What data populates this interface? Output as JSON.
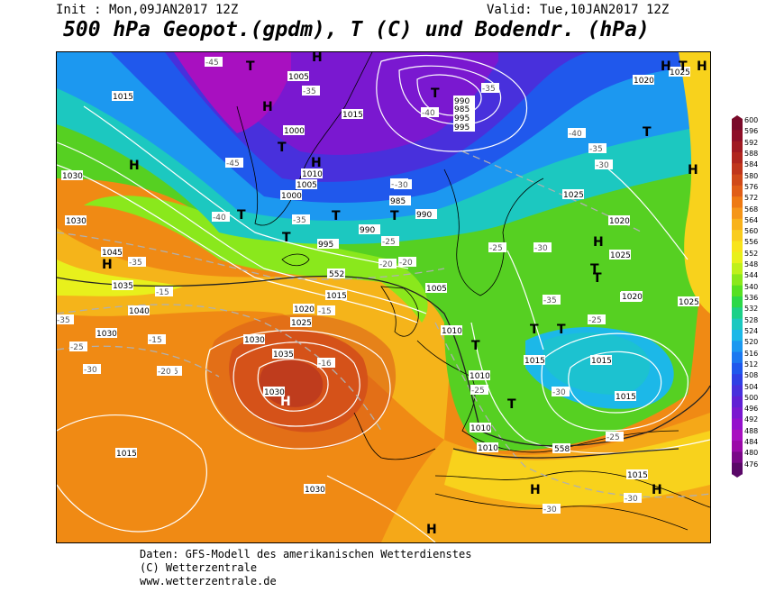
{
  "header": {
    "init": "Init : Mon,09JAN2017 12Z",
    "valid": "Valid: Tue,10JAN2017 12Z",
    "title": "500 hPa Geopot.(gpdm), T (C) und Bodendr. (hPa)"
  },
  "footer": {
    "line1": "Daten: GFS-Modell des amerikanischen Wetterdienstes",
    "line2": "(C) Wetterzentrale",
    "line3": "www.wetterzentrale.de"
  },
  "scale": {
    "values": [
      "600",
      "596",
      "592",
      "588",
      "584",
      "580",
      "576",
      "572",
      "568",
      "564",
      "560",
      "556",
      "552",
      "548",
      "544",
      "540",
      "536",
      "532",
      "528",
      "524",
      "520",
      "516",
      "512",
      "508",
      "504",
      "500",
      "496",
      "492",
      "488",
      "484",
      "480",
      "476"
    ],
    "colors": [
      "#7a0a2a",
      "#8e0f28",
      "#a01a22",
      "#b0261e",
      "#c0361c",
      "#d04a1a",
      "#e05e18",
      "#ee7a14",
      "#f5961a",
      "#f8b21c",
      "#f9cc1e",
      "#f8e41c",
      "#e8f01c",
      "#bff01c",
      "#8ae81c",
      "#56e022",
      "#2cd848",
      "#1cd088",
      "#1cc8c0",
      "#1cb8e8",
      "#1c98f0",
      "#1c78f0",
      "#2058ec",
      "#3040e4",
      "#4830dc",
      "#6020d4",
      "#7a18d0",
      "#9410cc",
      "#a810c0",
      "#9a0aa8",
      "#7a0888",
      "#5a0868"
    ]
  },
  "map": {
    "pressure_labels": [
      "1015",
      "1005",
      "1000",
      "1010",
      "1005",
      "990",
      "985",
      "995",
      "995",
      "990",
      "1015",
      "1000",
      "985",
      "990",
      "995",
      "1005",
      "1010",
      "1015",
      "1020",
      "1025",
      "1030",
      "1035",
      "1040",
      "1045",
      "1030",
      "1020",
      "1025",
      "1020",
      "1025",
      "1020",
      "1025",
      "1030",
      "1035",
      "1030",
      "1025",
      "1020",
      "1015",
      "1010",
      "1010",
      "1015",
      "1015",
      "1010",
      "1015",
      "1030",
      "1030",
      "1020",
      "1015"
    ],
    "temp_labels": [
      "-45",
      "-35",
      "-35",
      "-45",
      "-40",
      "-40",
      "-35",
      "-30",
      "-35",
      "-40",
      "-35",
      "-30",
      "-25",
      "-20",
      "-25",
      "-30",
      "-20",
      "-15",
      "-15",
      "-15",
      "-20",
      "-25",
      "-30",
      "-35",
      "-25",
      "-30",
      "-25",
      "-30",
      "-35",
      "-25",
      "-30",
      "-15",
      "-16",
      "-30"
    ],
    "contour_552": "552",
    "contour_558": "558",
    "highs": [
      "H",
      "H",
      "H",
      "H",
      "H",
      "H",
      "H",
      "H",
      "H",
      "H",
      "H",
      "H",
      "H"
    ],
    "lows": [
      "T",
      "T",
      "T",
      "T",
      "T",
      "T",
      "T",
      "T",
      "T",
      "T",
      "T",
      "T",
      "T",
      "T",
      "T"
    ]
  }
}
